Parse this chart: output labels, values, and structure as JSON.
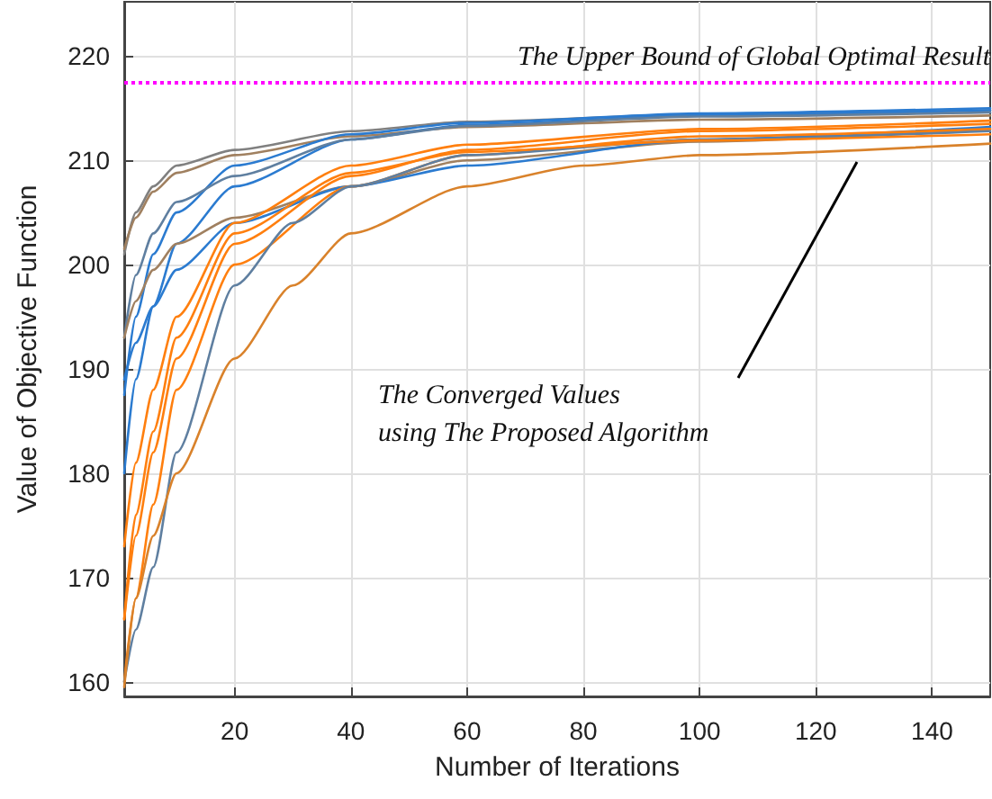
{
  "chart_data": {
    "type": "line",
    "xlabel": "Number of Iterations",
    "ylabel": "Value of Objective Function",
    "xlim": [
      1,
      150
    ],
    "xticks": [
      20,
      40,
      60,
      80,
      100,
      120,
      140
    ],
    "ylim": [
      158.6,
      225.2
    ],
    "yticks": [
      160,
      170,
      180,
      190,
      200,
      210,
      220
    ],
    "grid": true,
    "marker": "none",
    "line_style": "solid",
    "ref_lines": [
      {
        "axis": "y",
        "value": 217.5,
        "label": "The Upper Bound of Global Optimal Result",
        "color": "#ff00ff",
        "line_style": "dotted"
      }
    ],
    "annotations": [
      "The Converged Values\nusing The Proposed Algorithm"
    ],
    "series": [
      {
        "color": "#808080",
        "x": [
          1,
          3,
          6,
          10,
          20,
          40,
          60,
          100,
          150
        ],
        "values": [
          201,
          205,
          207.5,
          209.5,
          211,
          212.8,
          213.7,
          214.4,
          214.8
        ]
      },
      {
        "color": "#a08060",
        "x": [
          1,
          3,
          6,
          10,
          20,
          40,
          60,
          100,
          150
        ],
        "values": [
          201.5,
          204.5,
          207,
          208.8,
          210.5,
          212.3,
          213.2,
          213.9,
          214.3
        ]
      },
      {
        "color": "#2b7bd0",
        "x": [
          1,
          3,
          6,
          10,
          20,
          40,
          60,
          100,
          150
        ],
        "values": [
          187.5,
          195,
          201,
          205,
          209.5,
          212.5,
          213.6,
          214.5,
          215
        ]
      },
      {
        "color": "#2b7bd0",
        "x": [
          1,
          3,
          6,
          10,
          20,
          40,
          60,
          100,
          150
        ],
        "values": [
          180,
          189,
          196,
          202,
          207.5,
          212,
          213.4,
          214.3,
          214.8
        ]
      },
      {
        "color": "#5f7fa0",
        "x": [
          1,
          3,
          6,
          10,
          20,
          40,
          60,
          100,
          150
        ],
        "values": [
          193,
          199,
          203,
          206,
          208.5,
          212,
          213.3,
          214.2,
          214.6
        ]
      },
      {
        "color": "#a08060",
        "x": [
          1,
          3,
          6,
          10,
          20,
          40,
          60,
          100,
          150
        ],
        "values": [
          193,
          196.5,
          199.5,
          202,
          204.5,
          207.5,
          210,
          211.8,
          213
        ]
      },
      {
        "color": "#2b7bd0",
        "x": [
          1,
          3,
          6,
          10,
          20,
          40,
          60,
          100,
          150
        ],
        "values": [
          189,
          192.5,
          196,
          199.5,
          204,
          207.5,
          209.5,
          212,
          213.2
        ]
      },
      {
        "color": "#ff7f0e",
        "x": [
          1,
          3,
          6,
          10,
          20,
          40,
          60,
          100,
          150
        ],
        "values": [
          173,
          181,
          188,
          195,
          204,
          209.5,
          211.5,
          213,
          213.8
        ]
      },
      {
        "color": "#ff7f0e",
        "x": [
          1,
          3,
          6,
          10,
          20,
          40,
          60,
          100,
          150
        ],
        "values": [
          166,
          174,
          182,
          191,
          202,
          208.5,
          211,
          212.8,
          213.5
        ]
      },
      {
        "color": "#ff7f0e",
        "x": [
          1,
          3,
          6,
          10,
          20,
          40,
          60,
          100,
          150
        ],
        "values": [
          160,
          168,
          177,
          188,
          200,
          207.5,
          210.5,
          212.3,
          213
        ]
      },
      {
        "color": "#5f7fa0",
        "x": [
          1,
          3,
          6,
          10,
          20,
          30,
          40,
          60,
          100,
          150
        ],
        "values": [
          160,
          165,
          171,
          182,
          198,
          204,
          207.5,
          210.5,
          212,
          212.8
        ]
      },
      {
        "color": "#ff7f0e",
        "x": [
          1,
          3,
          6,
          10,
          20,
          40,
          60,
          100,
          150
        ],
        "values": [
          166,
          176,
          184,
          193,
          203,
          208.8,
          210.8,
          211.9,
          212.5
        ]
      },
      {
        "color": "#d9822b",
        "x": [
          1,
          3,
          6,
          10,
          20,
          30,
          40,
          60,
          80,
          100,
          150
        ],
        "values": [
          159.5,
          168,
          174,
          180,
          191,
          198,
          203,
          207.5,
          209.5,
          210.5,
          211.6
        ]
      }
    ]
  }
}
